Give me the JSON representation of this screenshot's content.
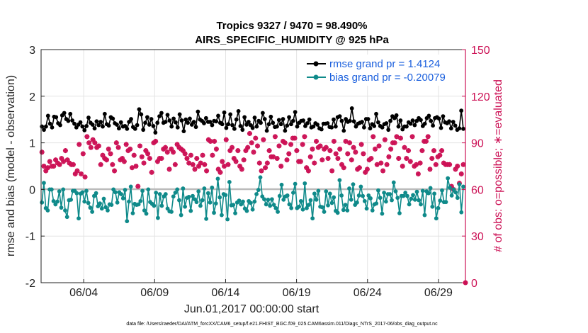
{
  "chart_data": {
    "type": "line",
    "title": "Tropics 9327 / 9470 = 98.490%",
    "subtitle": "AIRS_SPECIFIC_HUMIDITY @ 925 hPa",
    "xlabel": "Jun.01,2017 00:00:00 start",
    "ylabel": "rmse and bias (model - observation)",
    "ylabel_right": "# of obs: o=possible; ∗=evaluated",
    "xlim_days": [
      0.5,
      30.4
    ],
    "ylim": [
      -2,
      3
    ],
    "ylim_right": [
      0,
      150
    ],
    "xticks": [
      {
        "day": 3.5,
        "label": "06/04"
      },
      {
        "day": 8.5,
        "label": "06/09"
      },
      {
        "day": 13.5,
        "label": "06/14"
      },
      {
        "day": 18.5,
        "label": "06/19"
      },
      {
        "day": 23.5,
        "label": "06/24"
      },
      {
        "day": 28.5,
        "label": "06/29"
      }
    ],
    "yticks": [
      "-2",
      "-1",
      "0",
      "1",
      "2",
      "3"
    ],
    "yticks_right": [
      "0",
      "30",
      "60",
      "90",
      "120",
      "150"
    ],
    "legend_position": "top-right",
    "series": [
      {
        "name": "rmse grand pr = 1.4124",
        "color": "#000000",
        "marker": "circle",
        "values": [
          1.35,
          1.28,
          1.35,
          1.58,
          1.41,
          1.33,
          1.56,
          1.55,
          1.42,
          1.38,
          1.59,
          1.64,
          1.51,
          1.47,
          1.62,
          1.48,
          1.41,
          1.33,
          1.39,
          1.44,
          1.35,
          1.27,
          1.36,
          1.54,
          1.43,
          1.39,
          1.31,
          1.46,
          1.38,
          1.45,
          1.35,
          1.62,
          1.4,
          1.37,
          1.55,
          1.52,
          1.42,
          1.39,
          1.31,
          1.44,
          1.35,
          1.36,
          1.3,
          1.45,
          1.51,
          1.34,
          1.3,
          1.38,
          1.72,
          1.61,
          1.28,
          1.43,
          1.55,
          1.39,
          1.51,
          1.36,
          1.22,
          1.43,
          1.57,
          1.64,
          1.43,
          1.45,
          1.6,
          1.48,
          1.35,
          1.52,
          1.44,
          1.33,
          1.61,
          1.48,
          1.25,
          1.5,
          1.43,
          1.52,
          1.39,
          1.45,
          1.34,
          1.67,
          1.5,
          1.47,
          1.42,
          1.53,
          1.45,
          1.45,
          1.38,
          1.47,
          1.46,
          1.58,
          1.43,
          1.4,
          1.65,
          1.32,
          1.4,
          1.61,
          1.38,
          1.3,
          1.5,
          1.68,
          1.36,
          1.28,
          1.55,
          1.39,
          1.45,
          1.38,
          1.32,
          1.54,
          1.35,
          1.47,
          1.43,
          1.64,
          1.51,
          1.26,
          1.4,
          1.56,
          1.43,
          1.34,
          1.35,
          1.49,
          1.4,
          1.51,
          1.26,
          1.37,
          1.55,
          1.4,
          1.47,
          1.66,
          1.35,
          1.43,
          1.47,
          1.48,
          1.36,
          1.42,
          1.5,
          1.33,
          1.35,
          1.42,
          1.39,
          1.31,
          1.29,
          1.41,
          1.41,
          1.42,
          1.34,
          1.33,
          1.5,
          1.35,
          1.55,
          1.57,
          1.47,
          1.26,
          1.51,
          1.45,
          1.47,
          1.74,
          1.46,
          1.35,
          1.41,
          1.43,
          1.45,
          1.33,
          1.51,
          1.51,
          1.31,
          1.4,
          1.36,
          1.62,
          1.44,
          1.36,
          1.33,
          1.4,
          1.42,
          1.28,
          1.47,
          1.57,
          1.53,
          1.59,
          1.35,
          1.48,
          1.29,
          1.35,
          1.35,
          1.44,
          1.41,
          1.48,
          1.38,
          1.47,
          1.53,
          1.49,
          1.36,
          1.41,
          1.53,
          1.58,
          1.47,
          1.37,
          1.53,
          1.55,
          1.52,
          1.32,
          1.57,
          1.44,
          1.42,
          1.46,
          1.31,
          1.45,
          1.37,
          1.28,
          1.31,
          1.69,
          1.3
        ]
      },
      {
        "name": "bias grand pr = -0.20079",
        "color": "#0f8a8a",
        "marker": "circle",
        "values": [
          -0.28,
          0.14,
          -0.4,
          -0.45,
          0.0,
          0.0,
          -0.25,
          -0.32,
          -0.26,
          -0.04,
          -0.39,
          0.0,
          -0.45,
          -0.59,
          -0.23,
          -0.22,
          -0.03,
          -0.03,
          -0.08,
          -0.62,
          -0.09,
          -0.06,
          -0.26,
          -0.03,
          -0.29,
          -0.39,
          -0.48,
          -0.14,
          -0.08,
          -0.36,
          -0.3,
          -0.41,
          -0.2,
          -0.38,
          -0.45,
          -0.32,
          -0.33,
          0.0,
          -0.06,
          -0.28,
          -0.06,
          -0.1,
          -0.19,
          -0.01,
          -0.68,
          -0.26,
          0.06,
          -0.51,
          -0.31,
          -0.33,
          -0.32,
          -0.25,
          -0.03,
          -0.45,
          -0.52,
          0.0,
          -0.27,
          -0.31,
          -0.35,
          -0.07,
          -0.61,
          -0.1,
          -0.35,
          -0.15,
          -0.1,
          -0.41,
          -0.47,
          -0.48,
          -0.15,
          -0.07,
          0.0,
          -0.23,
          -0.55,
          0.02,
          -0.37,
          -0.18,
          -0.16,
          -0.46,
          -0.14,
          -0.21,
          -0.27,
          -0.04,
          -0.35,
          -0.23,
          0.02,
          -0.63,
          -0.08,
          -0.28,
          0.04,
          -0.5,
          -0.3,
          0.23,
          -0.17,
          -0.55,
          -0.1,
          -0.12,
          -0.64,
          0.16,
          -0.34,
          -0.33,
          -0.51,
          -0.28,
          -0.24,
          -0.32,
          -0.26,
          -0.41,
          -0.46,
          -0.25,
          -0.29,
          -0.43,
          -0.26,
          -0.1,
          -0.01,
          0.26,
          -0.15,
          -0.21,
          -0.32,
          -0.22,
          -0.35,
          -0.21,
          -0.33,
          -0.4,
          -0.48,
          -0.14,
          0.1,
          -0.22,
          -0.15,
          -0.13,
          -0.32,
          -0.4,
          -0.07,
          0.12,
          -0.4,
          -0.37,
          -0.25,
          -0.43,
          0.13,
          -0.4,
          -0.33,
          -0.23,
          -0.62,
          -0.09,
          -0.22,
          -0.03,
          -0.37,
          -0.38,
          -0.48,
          -0.04,
          -0.34,
          -0.09,
          -0.29,
          -0.17,
          -0.46,
          -0.5,
          0.2,
          -0.13,
          -0.44,
          -0.33,
          -0.45,
          0.02,
          -0.22,
          0.11,
          -0.33,
          -0.28,
          -0.13,
          0.06,
          -0.14,
          -0.25,
          -0.41,
          -0.13,
          -0.19,
          -0.45,
          -0.32,
          -0.3,
          -0.02,
          -0.18,
          -0.52,
          -0.07,
          -0.26,
          -0.1,
          -0.1,
          -0.23,
          0.15,
          -0.04,
          -0.18,
          -0.51,
          -0.14,
          -0.14,
          -0.07,
          -0.14,
          -0.32,
          -0.2,
          -0.12,
          -0.22,
          -0.05,
          -0.23,
          -0.32,
          -0.03,
          -0.55,
          -0.04,
          -0.08,
          0.03,
          -0.37,
          -0.09,
          -0.62,
          -0.4,
          -0.24,
          -0.02,
          -0.27,
          -0.27,
          0.24,
          0.04,
          -0.13,
          0.0,
          -0.06,
          -0.18,
          0.11,
          -0.49,
          0.06
        ]
      }
    ],
    "obs_counts": {
      "color": "#cc1155",
      "possible": [
        84,
        75,
        72,
        74,
        78,
        75,
        75,
        79,
        77,
        76,
        80,
        78,
        85,
        79,
        77,
        76,
        76,
        70,
        72,
        89,
        70,
        83,
        68,
        94,
        90,
        87,
        92,
        90,
        87,
        88,
        76,
        82,
        80,
        79,
        86,
        83,
        76,
        72,
        90,
        87,
        79,
        80,
        78,
        89,
        85,
        86,
        74,
        82,
        75,
        62,
        88,
        81,
        77,
        85,
        83,
        80,
        71,
        90,
        91,
        78,
        80,
        80,
        86,
        87,
        84,
        73,
        86,
        84,
        76,
        89,
        87,
        86,
        85,
        83,
        80,
        77,
        82,
        76,
        73,
        80,
        75,
        77,
        82,
        76,
        72,
        92,
        91,
        82,
        91,
        86,
        73,
        71,
        78,
        75,
        92,
        76,
        85,
        87,
        80,
        78,
        85,
        75,
        73,
        79,
        85,
        87,
        96,
        90,
        84,
        93,
        88,
        77,
        72,
        92,
        74,
        77,
        85,
        81,
        81,
        94,
        80,
        88,
        75,
        91,
        90,
        79,
        83,
        89,
        93,
        93,
        85,
        78,
        78,
        89,
        94,
        74,
        72,
        81,
        86,
        77,
        91,
        87,
        88,
        79,
        86,
        87,
        80,
        85,
        72,
        91,
        83,
        80,
        86,
        76,
        74,
        91,
        83,
        90,
        79,
        87,
        84,
        73,
        74,
        89,
        83,
        71,
        73,
        79,
        80,
        94,
        86,
        76,
        88,
        77,
        72,
        92,
        76,
        81,
        86,
        90,
        90,
        94,
        80,
        93,
        75,
        87,
        80,
        85,
        78,
        94,
        75,
        76,
        70,
        77,
        85,
        91,
        91,
        94,
        73,
        80,
        85,
        76,
        81,
        82,
        85,
        77,
        76,
        76,
        76,
        62,
        60,
        73,
        75,
        64,
        70,
        76
      ],
      "evaluated": [
        84,
        75,
        72,
        74,
        78,
        75,
        75,
        79,
        77,
        76,
        80,
        78,
        85,
        79,
        77,
        76,
        76,
        70,
        72,
        89,
        70,
        83,
        68,
        94,
        90,
        87,
        92,
        90,
        87,
        88,
        76,
        82,
        80,
        79,
        86,
        83,
        76,
        72,
        90,
        87,
        79,
        80,
        78,
        89,
        85,
        86,
        74,
        82,
        75,
        62,
        88,
        81,
        77,
        85,
        83,
        80,
        71,
        90,
        91,
        78,
        80,
        80,
        86,
        87,
        84,
        73,
        86,
        84,
        76,
        89,
        87,
        86,
        85,
        83,
        80,
        77,
        82,
        76,
        73,
        80,
        75,
        77,
        82,
        76,
        72,
        92,
        91,
        82,
        91,
        86,
        73,
        71,
        78,
        75,
        92,
        76,
        85,
        87,
        80,
        78,
        85,
        75,
        73,
        79,
        85,
        87,
        96,
        90,
        84,
        93,
        88,
        77,
        72,
        92,
        74,
        77,
        85,
        81,
        81,
        94,
        80,
        88,
        75,
        91,
        90,
        79,
        83,
        89,
        93,
        93,
        85,
        78,
        78,
        89,
        94,
        74,
        72,
        81,
        86,
        77,
        91,
        87,
        88,
        79,
        86,
        87,
        80,
        85,
        72,
        91,
        83,
        80,
        86,
        76,
        74,
        91,
        83,
        90,
        79,
        87,
        84,
        73,
        74,
        89,
        83,
        71,
        73,
        79,
        80,
        94,
        86,
        76,
        88,
        77,
        72,
        92,
        76,
        81,
        86,
        90,
        90,
        94,
        80,
        93,
        75,
        87,
        80,
        85,
        78,
        94,
        75,
        76,
        70,
        77,
        85,
        91,
        91,
        94,
        73,
        80,
        85,
        76,
        81,
        82,
        85,
        77,
        76,
        76,
        76,
        62,
        60,
        73,
        75,
        64,
        70,
        76
      ]
    }
  },
  "footer": {
    "data_file": "data file: /Users/raeder/DAI/ATM_forcXX/CAM6_setup/f.e21.FHIST_BGC.f09_025.CAM6assim.011/Diags_NTrS_2017-06/obs_diag_output.nc"
  }
}
